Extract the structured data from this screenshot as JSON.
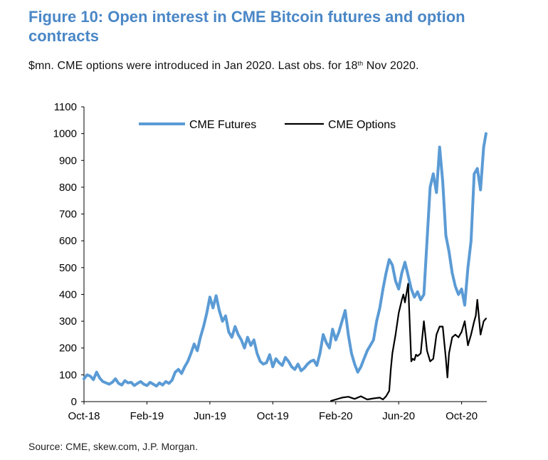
{
  "figure": {
    "title": "Figure 10: Open interest in CME Bitcoin futures and option contracts",
    "subtitle_pre": "$mn. CME options were introduced in Jan 2020. Last obs. for 18",
    "subtitle_sup": "th",
    "subtitle_post": " Nov 2020.",
    "source": "Source: CME, skew.com, J.P. Morgan."
  },
  "colors": {
    "futures": "#5b9bd5",
    "options": "#000000",
    "title": "#4a87c6"
  },
  "chart_data": {
    "type": "line",
    "title": "Open interest in CME Bitcoin futures and option contracts",
    "xlabel": "",
    "ylabel": "$mn",
    "ylim": [
      0,
      1100
    ],
    "yticks": [
      0,
      100,
      200,
      300,
      400,
      500,
      600,
      700,
      800,
      900,
      1000,
      1100
    ],
    "xlim": [
      0,
      25.6
    ],
    "xticks": [
      {
        "label": "Oct-18",
        "value": 0
      },
      {
        "label": "Feb-19",
        "value": 4
      },
      {
        "label": "Jun-19",
        "value": 8
      },
      {
        "label": "Oct-19",
        "value": 12
      },
      {
        "label": "Feb-20",
        "value": 16
      },
      {
        "label": "Jun-20",
        "value": 20
      },
      {
        "label": "Oct-20",
        "value": 24
      }
    ],
    "legend": {
      "placement": "top-center"
    },
    "series": [
      {
        "name": "CME Futures",
        "color": "#5b9bd5",
        "x": [
          0,
          0.2,
          0.4,
          0.6,
          0.8,
          1.0,
          1.2,
          1.4,
          1.6,
          1.8,
          2.0,
          2.2,
          2.4,
          2.6,
          2.8,
          3.0,
          3.2,
          3.4,
          3.6,
          3.8,
          4.0,
          4.2,
          4.4,
          4.6,
          4.8,
          5.0,
          5.2,
          5.4,
          5.6,
          5.8,
          6.0,
          6.2,
          6.4,
          6.6,
          6.8,
          7.0,
          7.2,
          7.4,
          7.6,
          7.8,
          8.0,
          8.2,
          8.4,
          8.6,
          8.8,
          9.0,
          9.2,
          9.4,
          9.6,
          9.8,
          10.0,
          10.2,
          10.4,
          10.6,
          10.8,
          11.0,
          11.2,
          11.4,
          11.6,
          11.8,
          12.0,
          12.2,
          12.4,
          12.6,
          12.8,
          13.0,
          13.2,
          13.4,
          13.6,
          13.8,
          14.0,
          14.2,
          14.4,
          14.6,
          14.8,
          15.0,
          15.2,
          15.4,
          15.6,
          15.8,
          16.0,
          16.2,
          16.4,
          16.6,
          16.8,
          17.0,
          17.2,
          17.4,
          17.6,
          17.8,
          18.0,
          18.2,
          18.4,
          18.6,
          18.8,
          19.0,
          19.2,
          19.4,
          19.6,
          19.8,
          20.0,
          20.2,
          20.4,
          20.6,
          20.8,
          21.0,
          21.2,
          21.4,
          21.6,
          21.8,
          22.0,
          22.2,
          22.4,
          22.6,
          22.8,
          23.0,
          23.2,
          23.4,
          23.6,
          23.8,
          24.0,
          24.2,
          24.4,
          24.6,
          24.8,
          25.0,
          25.2,
          25.4,
          25.55
        ],
        "values": [
          85,
          100,
          95,
          82,
          110,
          88,
          75,
          70,
          65,
          72,
          85,
          68,
          62,
          78,
          70,
          72,
          60,
          68,
          75,
          65,
          60,
          72,
          65,
          58,
          70,
          62,
          75,
          68,
          80,
          110,
          120,
          105,
          130,
          150,
          180,
          215,
          190,
          240,
          280,
          330,
          390,
          350,
          395,
          340,
          300,
          320,
          260,
          240,
          280,
          250,
          230,
          200,
          240,
          210,
          230,
          180,
          150,
          140,
          145,
          175,
          130,
          160,
          145,
          135,
          165,
          150,
          130,
          120,
          140,
          115,
          125,
          140,
          150,
          155,
          135,
          180,
          250,
          220,
          200,
          270,
          230,
          260,
          300,
          340,
          250,
          180,
          140,
          110,
          130,
          160,
          190,
          210,
          230,
          300,
          350,
          420,
          480,
          530,
          510,
          450,
          420,
          480,
          520,
          470,
          420,
          390,
          410,
          380,
          400,
          600,
          800,
          850,
          780,
          950,
          820,
          620,
          560,
          480,
          430,
          400,
          420,
          360,
          500,
          600,
          850,
          870,
          790,
          950,
          1000
        ]
      },
      {
        "name": "CME Options",
        "color": "#000000",
        "x": [
          15.7,
          16.0,
          16.4,
          16.8,
          17.2,
          17.6,
          18.0,
          18.4,
          18.8,
          19.0,
          19.2,
          19.4,
          19.5,
          19.6,
          19.8,
          20.0,
          20.2,
          20.3,
          20.4,
          20.6,
          20.8,
          20.9,
          21.0,
          21.1,
          21.2,
          21.4,
          21.6,
          21.8,
          22.0,
          22.2,
          22.4,
          22.6,
          22.8,
          23.0,
          23.1,
          23.2,
          23.4,
          23.6,
          23.8,
          24.0,
          24.2,
          24.4,
          24.6,
          24.8,
          24.9,
          25.0,
          25.2,
          25.4,
          25.55
        ],
        "values": [
          3,
          8,
          15,
          18,
          10,
          20,
          8,
          12,
          15,
          8,
          20,
          40,
          120,
          180,
          250,
          330,
          380,
          400,
          370,
          440,
          150,
          160,
          155,
          175,
          170,
          180,
          300,
          190,
          150,
          160,
          250,
          280,
          280,
          160,
          90,
          180,
          240,
          250,
          240,
          260,
          300,
          210,
          250,
          300,
          320,
          380,
          250,
          300,
          310
        ]
      }
    ]
  }
}
